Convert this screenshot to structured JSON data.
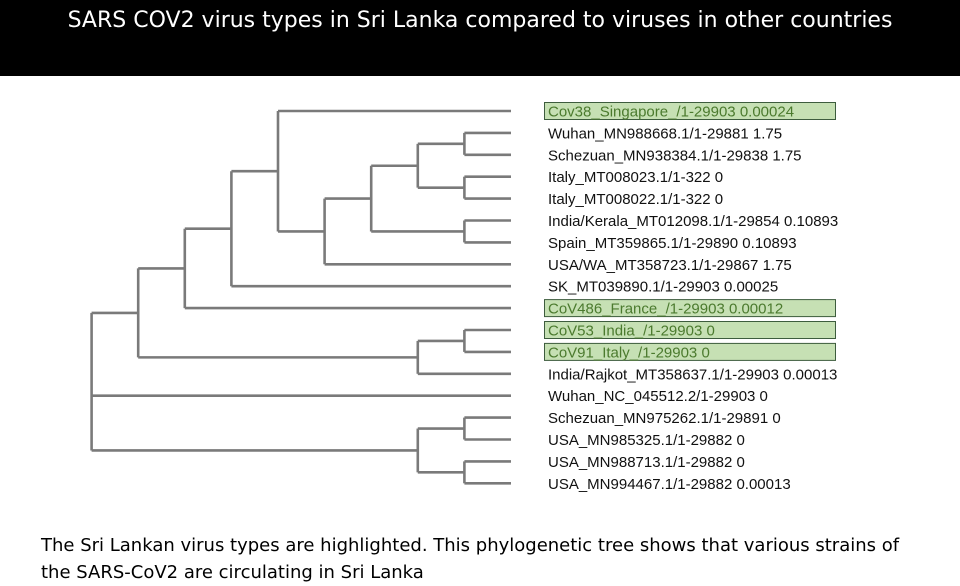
{
  "slide": {
    "title": "SARS COV2 virus types in Sri Lanka compared to viruses in other countries",
    "caption": "The Sri Lankan virus types are highlighted. This phylogenetic tree shows that various strains of the SARS-CoV2 are circulating in Sri Lanka"
  },
  "colors": {
    "title_bar": "#000000",
    "branch": "#7a7a7a",
    "highlight_fill": "#c6e0b4",
    "highlight_border": "#3d5c3d",
    "highlight_text": "#4b7a2e"
  },
  "tree": {
    "leaves": [
      {
        "label": "Cov38_Singapore_/1-29903 0.00024",
        "highlighted": true
      },
      {
        "label": "Wuhan_MN988668.1/1-29881 1.75",
        "highlighted": false
      },
      {
        "label": "Schezuan_MN938384.1/1-29838 1.75",
        "highlighted": false
      },
      {
        "label": "Italy_MT008023.1/1-322 0",
        "highlighted": false
      },
      {
        "label": "Italy_MT008022.1/1-322 0",
        "highlighted": false
      },
      {
        "label": "India/Kerala_MT012098.1/1-29854 0.10893",
        "highlighted": false
      },
      {
        "label": "Spain_MT359865.1/1-29890 0.10893",
        "highlighted": false
      },
      {
        "label": "USA/WA_MT358723.1/1-29867 1.75",
        "highlighted": false
      },
      {
        "label": "SK_MT039890.1/1-29903 0.00025",
        "highlighted": false
      },
      {
        "label": "CoV486_France_/1-29903 0.00012",
        "highlighted": true
      },
      {
        "label": "CoV53_India_/1-29903 0",
        "highlighted": true
      },
      {
        "label": "CoV91_Italy_/1-29903 0",
        "highlighted": true
      },
      {
        "label": "India/Rajkot_MT358637.1/1-29903 0.00013",
        "highlighted": false
      },
      {
        "label": "Wuhan_NC_045512.2/1-29903 0",
        "highlighted": false
      },
      {
        "label": "Schezuan_MN975262.1/1-29891 0",
        "highlighted": false
      },
      {
        "label": "USA_MN985325.1/1-29882 0",
        "highlighted": false
      },
      {
        "label": "USA_MN988713.1/1-29882 0",
        "highlighted": false
      },
      {
        "label": "USA_MN994467.1/1-29882 0.00013",
        "highlighted": false
      }
    ],
    "topology": [
      [
        [
          [
            [
              0,
              [
                [
                  [
                    [
                      1,
                      2
                    ],
                    [
                      3,
                      4
                    ]
                  ],
                  [
                    5,
                    6
                  ]
                ],
                7
              ]
            ],
            8
          ],
          9
        ],
        [
          [
            10,
            11
          ],
          12
        ]
      ],
      13,
      [
        [
          14,
          15
        ],
        [
          16,
          17
        ]
      ]
    ]
  }
}
